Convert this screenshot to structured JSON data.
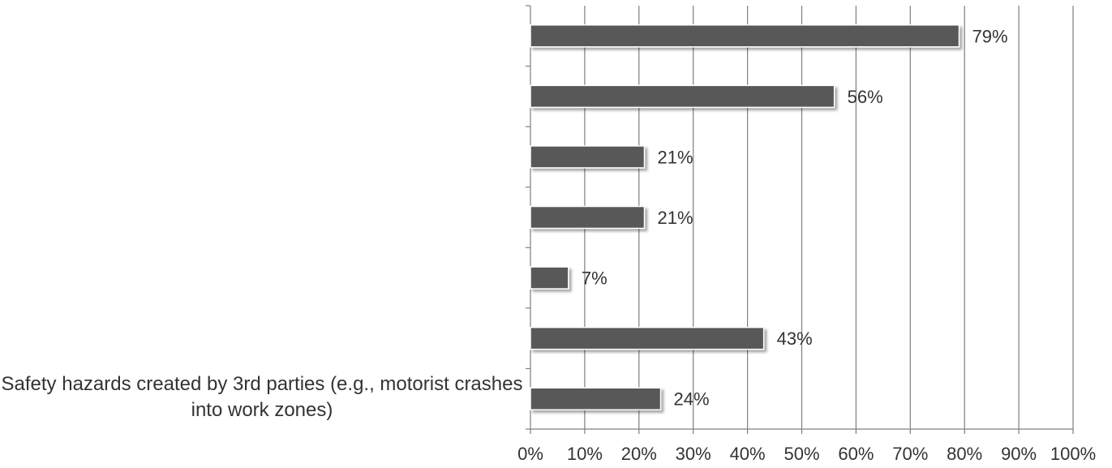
{
  "chart_data": {
    "type": "bar",
    "orientation": "horizontal",
    "categories": [
      "",
      "",
      "",
      "",
      "",
      "",
      "Safety hazards created by 3rd parties (e.g., motorist crashes into work zones)"
    ],
    "values": [
      79,
      56,
      21,
      21,
      7,
      43,
      24
    ],
    "data_labels": [
      "79%",
      "56%",
      "21%",
      "21%",
      "7%",
      "43%",
      "24%"
    ],
    "title": "",
    "xlabel": "",
    "ylabel": "",
    "xlim": [
      0,
      100
    ],
    "x_ticks": [
      "0%",
      "10%",
      "20%",
      "30%",
      "40%",
      "50%",
      "60%",
      "70%",
      "80%",
      "90%",
      "100%"
    ],
    "grid": "vertical",
    "legend": "none",
    "colors": {
      "bar": "#595959",
      "bar_stroke": "#ffffff",
      "shadow": "#bfbfbf",
      "grid": "#7f7f7f",
      "text": "#333333"
    }
  }
}
